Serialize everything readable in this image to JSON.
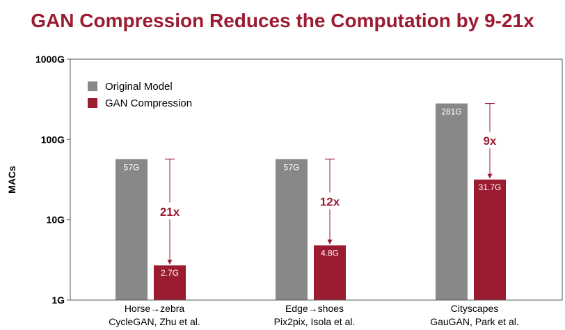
{
  "title": "GAN Compression Reduces the Computation by 9-21x",
  "colors": {
    "title": "#9b1b30",
    "original": "#888888",
    "compressed": "#9b1b30",
    "axis": "#000000",
    "arrow": "#9b1b30"
  },
  "chart_data": {
    "type": "bar",
    "scale": "log",
    "title": "GAN Compression Reduces the Computation by 9-21x",
    "xlabel": "",
    "ylabel": "MACs",
    "ylim": [
      1,
      1000
    ],
    "yticks": [
      {
        "value": 1,
        "label": "1G"
      },
      {
        "value": 10,
        "label": "10G"
      },
      {
        "value": 100,
        "label": "100G"
      },
      {
        "value": 1000,
        "label": "1000G"
      }
    ],
    "categories": [
      {
        "line1": "Horse→zebra",
        "line2": "CycleGAN, Zhu et al."
      },
      {
        "line1": "Edge→shoes",
        "line2": "Pix2pix, Isola et al."
      },
      {
        "line1": "Cityscapes",
        "line2": "GauGAN, Park et al."
      }
    ],
    "series": [
      {
        "name": "Original Model",
        "values": [
          57,
          57,
          281
        ],
        "labels": [
          "57G",
          "57G",
          "281G"
        ]
      },
      {
        "name": "GAN Compression",
        "values": [
          2.7,
          4.8,
          31.7
        ],
        "labels": [
          "2.7G",
          "4.8G",
          "31.7G"
        ]
      }
    ],
    "annotations": [
      "21x",
      "12x",
      "9x"
    ],
    "legend": "top-left"
  }
}
